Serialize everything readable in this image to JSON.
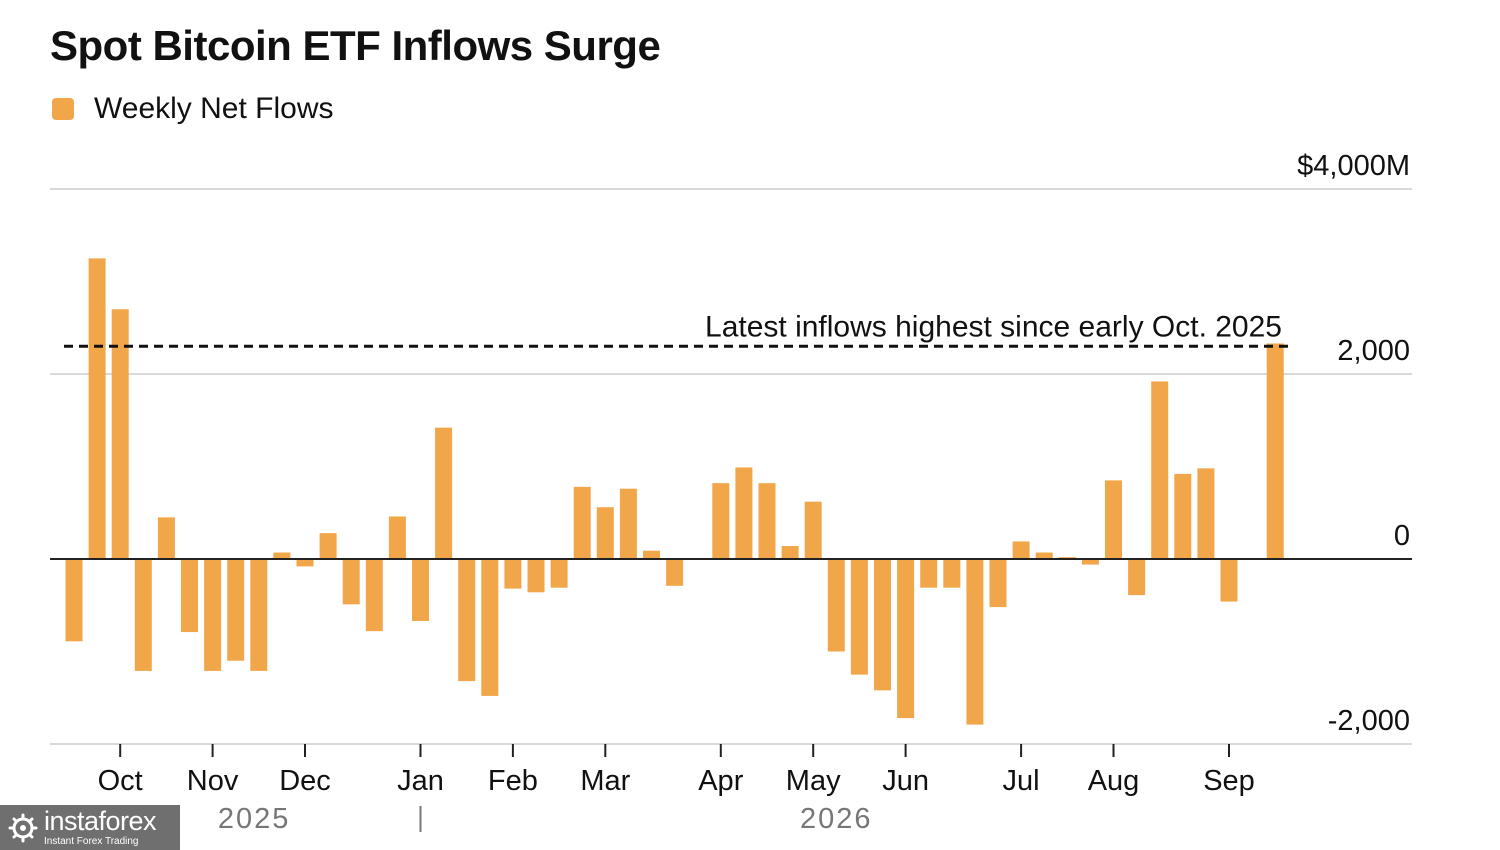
{
  "title": "Spot Bitcoin ETF Inflows Surge",
  "legend": {
    "label": "Weekly Net Flows",
    "color": "#f2a64a"
  },
  "annotation": {
    "text": "Latest inflows highest since early Oct. 2025",
    "value": 2300
  },
  "watermark": {
    "brand": "instaforex",
    "tagline": "Instant Forex Trading"
  },
  "chart_data": {
    "type": "bar",
    "title": "Spot Bitcoin ETF Inflows Surge",
    "ylim": [
      -2000,
      4000
    ],
    "yticks": [
      {
        "value": 4000,
        "label": "$4,000M"
      },
      {
        "value": 2000,
        "label": "2,000"
      },
      {
        "value": 0,
        "label": "0"
      },
      {
        "value": -2000,
        "label": "-2,000"
      }
    ],
    "grid": true,
    "legend_position": "top-left",
    "month_ticks": [
      {
        "label": "Oct",
        "index": 2.0
      },
      {
        "label": "Nov",
        "index": 6.0
      },
      {
        "label": "Dec",
        "index": 10.0
      },
      {
        "label": "Jan",
        "index": 15.0
      },
      {
        "label": "Feb",
        "index": 19.0
      },
      {
        "label": "Mar",
        "index": 23.0
      },
      {
        "label": "Apr",
        "index": 28.0
      },
      {
        "label": "May",
        "index": 32.0
      },
      {
        "label": "Jun",
        "index": 36.0
      },
      {
        "label": "Jul",
        "index": 41.0
      },
      {
        "label": "Aug",
        "index": 45.0
      },
      {
        "label": "Sep",
        "index": 50.0
      }
    ],
    "year_labels": [
      {
        "label": "2025",
        "index": 7.8
      },
      {
        "label": "2026",
        "index": 33.0
      }
    ],
    "year_divider_index": 15.0,
    "series": [
      {
        "name": "Weekly Net Flows",
        "color": "#f2a64a",
        "values": [
          -890,
          3250,
          2700,
          -1210,
          450,
          -790,
          -1210,
          -1100,
          -1210,
          70,
          -80,
          280,
          -490,
          -780,
          460,
          -670,
          1420,
          -1320,
          -1480,
          -320,
          -360,
          -310,
          780,
          560,
          760,
          90,
          -290,
          10,
          820,
          990,
          820,
          140,
          620,
          -1000,
          -1250,
          -1420,
          -1720,
          -310,
          -310,
          -1790,
          -520,
          190,
          70,
          20,
          -60,
          850,
          -390,
          1920,
          920,
          980,
          -460,
          0,
          2330
        ]
      }
    ]
  }
}
